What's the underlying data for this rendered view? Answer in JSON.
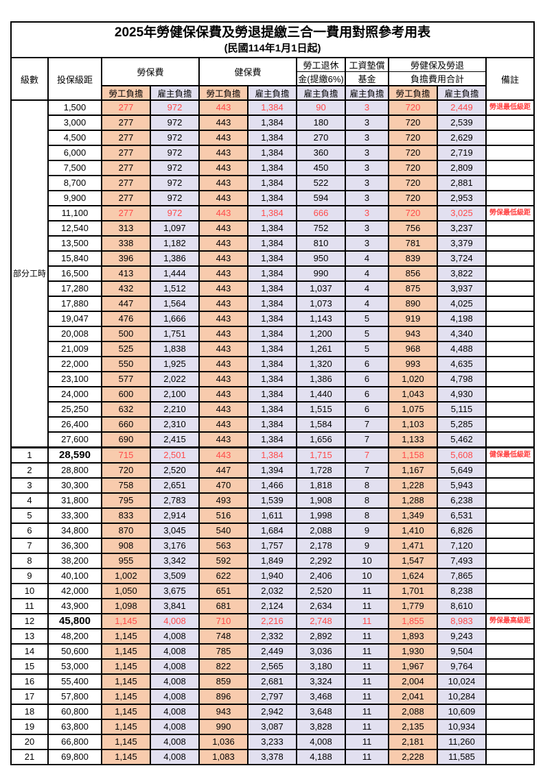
{
  "title": "2025年勞健保保費及勞退提繳三合一費用對照參考用表",
  "subtitle": "(民國114年1月1日起)",
  "colors": {
    "employee_cell": "#F8CBAD",
    "employer_cell": "#E2E0F0",
    "highlight_text": "#FF4A4A",
    "remark_text": "#FF3E3E",
    "border": "#000000"
  },
  "header": {
    "level": "級數",
    "bracket": "投保級距",
    "labor_ins": "勞保費",
    "health_ins": "健保費",
    "pension_line1": "勞工退休",
    "pension_line2": "金(提繳6%)",
    "wage_fund_line1": "工資墊償",
    "wage_fund_line2": "基金",
    "total_line1": "勞健保及勞退",
    "total_line2": "負擔費用合計",
    "remark": "備註",
    "employee": "勞工負擔",
    "employer": "雇主負擔"
  },
  "part_time": {
    "label": "部分工時",
    "rowspan": 23
  },
  "rows": [
    {
      "level": null,
      "bracket": "1,500",
      "values": [
        "277",
        "972",
        "443",
        "1,384",
        "90",
        "3",
        "720",
        "2,449"
      ],
      "remark": "勞退最低級距",
      "red": true,
      "big_bracket": false,
      "section_start": false
    },
    {
      "level": null,
      "bracket": "3,000",
      "values": [
        "277",
        "972",
        "443",
        "1,384",
        "180",
        "3",
        "720",
        "2,539"
      ],
      "remark": "",
      "red": false,
      "big_bracket": false,
      "section_start": false
    },
    {
      "level": null,
      "bracket": "4,500",
      "values": [
        "277",
        "972",
        "443",
        "1,384",
        "270",
        "3",
        "720",
        "2,629"
      ],
      "remark": "",
      "red": false,
      "big_bracket": false,
      "section_start": false
    },
    {
      "level": null,
      "bracket": "6,000",
      "values": [
        "277",
        "972",
        "443",
        "1,384",
        "360",
        "3",
        "720",
        "2,719"
      ],
      "remark": "",
      "red": false,
      "big_bracket": false,
      "section_start": false
    },
    {
      "level": null,
      "bracket": "7,500",
      "values": [
        "277",
        "972",
        "443",
        "1,384",
        "450",
        "3",
        "720",
        "2,809"
      ],
      "remark": "",
      "red": false,
      "big_bracket": false,
      "section_start": false
    },
    {
      "level": null,
      "bracket": "8,700",
      "values": [
        "277",
        "972",
        "443",
        "1,384",
        "522",
        "3",
        "720",
        "2,881"
      ],
      "remark": "",
      "red": false,
      "big_bracket": false,
      "section_start": false
    },
    {
      "level": null,
      "bracket": "9,900",
      "values": [
        "277",
        "972",
        "443",
        "1,384",
        "594",
        "3",
        "720",
        "2,953"
      ],
      "remark": "",
      "red": false,
      "big_bracket": false,
      "section_start": false
    },
    {
      "level": null,
      "bracket": "11,100",
      "values": [
        "277",
        "972",
        "443",
        "1,384",
        "666",
        "3",
        "720",
        "3,025"
      ],
      "remark": "勞保最低級距",
      "red": true,
      "big_bracket": false,
      "section_start": false
    },
    {
      "level": null,
      "bracket": "12,540",
      "values": [
        "313",
        "1,097",
        "443",
        "1,384",
        "752",
        "3",
        "756",
        "3,237"
      ],
      "remark": "",
      "red": false,
      "big_bracket": false,
      "section_start": false
    },
    {
      "level": null,
      "bracket": "13,500",
      "values": [
        "338",
        "1,182",
        "443",
        "1,384",
        "810",
        "3",
        "781",
        "3,379"
      ],
      "remark": "",
      "red": false,
      "big_bracket": false,
      "section_start": false
    },
    {
      "level": null,
      "bracket": "15,840",
      "values": [
        "396",
        "1,386",
        "443",
        "1,384",
        "950",
        "4",
        "839",
        "3,724"
      ],
      "remark": "",
      "red": false,
      "big_bracket": false,
      "section_start": false
    },
    {
      "level": null,
      "bracket": "16,500",
      "values": [
        "413",
        "1,444",
        "443",
        "1,384",
        "990",
        "4",
        "856",
        "3,822"
      ],
      "remark": "",
      "red": false,
      "big_bracket": false,
      "section_start": false
    },
    {
      "level": null,
      "bracket": "17,280",
      "values": [
        "432",
        "1,512",
        "443",
        "1,384",
        "1,037",
        "4",
        "875",
        "3,937"
      ],
      "remark": "",
      "red": false,
      "big_bracket": false,
      "section_start": false
    },
    {
      "level": null,
      "bracket": "17,880",
      "values": [
        "447",
        "1,564",
        "443",
        "1,384",
        "1,073",
        "4",
        "890",
        "4,025"
      ],
      "remark": "",
      "red": false,
      "big_bracket": false,
      "section_start": false
    },
    {
      "level": null,
      "bracket": "19,047",
      "values": [
        "476",
        "1,666",
        "443",
        "1,384",
        "1,143",
        "5",
        "919",
        "4,198"
      ],
      "remark": "",
      "red": false,
      "big_bracket": false,
      "section_start": false
    },
    {
      "level": null,
      "bracket": "20,008",
      "values": [
        "500",
        "1,751",
        "443",
        "1,384",
        "1,200",
        "5",
        "943",
        "4,340"
      ],
      "remark": "",
      "red": false,
      "big_bracket": false,
      "section_start": false
    },
    {
      "level": null,
      "bracket": "21,009",
      "values": [
        "525",
        "1,838",
        "443",
        "1,384",
        "1,261",
        "5",
        "968",
        "4,488"
      ],
      "remark": "",
      "red": false,
      "big_bracket": false,
      "section_start": false
    },
    {
      "level": null,
      "bracket": "22,000",
      "values": [
        "550",
        "1,925",
        "443",
        "1,384",
        "1,320",
        "6",
        "993",
        "4,635"
      ],
      "remark": "",
      "red": false,
      "big_bracket": false,
      "section_start": false
    },
    {
      "level": null,
      "bracket": "23,100",
      "values": [
        "577",
        "2,022",
        "443",
        "1,384",
        "1,386",
        "6",
        "1,020",
        "4,798"
      ],
      "remark": "",
      "red": false,
      "big_bracket": false,
      "section_start": false
    },
    {
      "level": null,
      "bracket": "24,000",
      "values": [
        "600",
        "2,100",
        "443",
        "1,384",
        "1,440",
        "6",
        "1,043",
        "4,930"
      ],
      "remark": "",
      "red": false,
      "big_bracket": false,
      "section_start": false
    },
    {
      "level": null,
      "bracket": "25,250",
      "values": [
        "632",
        "2,210",
        "443",
        "1,384",
        "1,515",
        "6",
        "1,075",
        "5,115"
      ],
      "remark": "",
      "red": false,
      "big_bracket": false,
      "section_start": false
    },
    {
      "level": null,
      "bracket": "26,400",
      "values": [
        "660",
        "2,310",
        "443",
        "1,384",
        "1,584",
        "7",
        "1,103",
        "5,285"
      ],
      "remark": "",
      "red": false,
      "big_bracket": false,
      "section_start": false
    },
    {
      "level": null,
      "bracket": "27,600",
      "values": [
        "690",
        "2,415",
        "443",
        "1,384",
        "1,656",
        "7",
        "1,133",
        "5,462"
      ],
      "remark": "",
      "red": false,
      "big_bracket": false,
      "section_start": false
    },
    {
      "level": "1",
      "bracket": "28,590",
      "values": [
        "715",
        "2,501",
        "443",
        "1,384",
        "1,715",
        "7",
        "1,158",
        "5,608"
      ],
      "remark": "健保最低級距",
      "red": true,
      "big_bracket": true,
      "section_start": true
    },
    {
      "level": "2",
      "bracket": "28,800",
      "values": [
        "720",
        "2,520",
        "447",
        "1,394",
        "1,728",
        "7",
        "1,167",
        "5,649"
      ],
      "remark": "",
      "red": false,
      "big_bracket": false,
      "section_start": false
    },
    {
      "level": "3",
      "bracket": "30,300",
      "values": [
        "758",
        "2,651",
        "470",
        "1,466",
        "1,818",
        "8",
        "1,228",
        "5,943"
      ],
      "remark": "",
      "red": false,
      "big_bracket": false,
      "section_start": false
    },
    {
      "level": "4",
      "bracket": "31,800",
      "values": [
        "795",
        "2,783",
        "493",
        "1,539",
        "1,908",
        "8",
        "1,288",
        "6,238"
      ],
      "remark": "",
      "red": false,
      "big_bracket": false,
      "section_start": false
    },
    {
      "level": "5",
      "bracket": "33,300",
      "values": [
        "833",
        "2,914",
        "516",
        "1,611",
        "1,998",
        "8",
        "1,349",
        "6,531"
      ],
      "remark": "",
      "red": false,
      "big_bracket": false,
      "section_start": false
    },
    {
      "level": "6",
      "bracket": "34,800",
      "values": [
        "870",
        "3,045",
        "540",
        "1,684",
        "2,088",
        "9",
        "1,410",
        "6,826"
      ],
      "remark": "",
      "red": false,
      "big_bracket": false,
      "section_start": false
    },
    {
      "level": "7",
      "bracket": "36,300",
      "values": [
        "908",
        "3,176",
        "563",
        "1,757",
        "2,178",
        "9",
        "1,471",
        "7,120"
      ],
      "remark": "",
      "red": false,
      "big_bracket": false,
      "section_start": false
    },
    {
      "level": "8",
      "bracket": "38,200",
      "values": [
        "955",
        "3,342",
        "592",
        "1,849",
        "2,292",
        "10",
        "1,547",
        "7,493"
      ],
      "remark": "",
      "red": false,
      "big_bracket": false,
      "section_start": false
    },
    {
      "level": "9",
      "bracket": "40,100",
      "values": [
        "1,002",
        "3,509",
        "622",
        "1,940",
        "2,406",
        "10",
        "1,624",
        "7,865"
      ],
      "remark": "",
      "red": false,
      "big_bracket": false,
      "section_start": false
    },
    {
      "level": "10",
      "bracket": "42,000",
      "values": [
        "1,050",
        "3,675",
        "651",
        "2,032",
        "2,520",
        "11",
        "1,701",
        "8,238"
      ],
      "remark": "",
      "red": false,
      "big_bracket": false,
      "section_start": false
    },
    {
      "level": "11",
      "bracket": "43,900",
      "values": [
        "1,098",
        "3,841",
        "681",
        "2,124",
        "2,634",
        "11",
        "1,779",
        "8,610"
      ],
      "remark": "",
      "red": false,
      "big_bracket": false,
      "section_start": false
    },
    {
      "level": "12",
      "bracket": "45,800",
      "values": [
        "1,145",
        "4,008",
        "710",
        "2,216",
        "2,748",
        "11",
        "1,855",
        "8,983"
      ],
      "remark": "勞保最高級距",
      "red": true,
      "big_bracket": true,
      "section_start": false
    },
    {
      "level": "13",
      "bracket": "48,200",
      "values": [
        "1,145",
        "4,008",
        "748",
        "2,332",
        "2,892",
        "11",
        "1,893",
        "9,243"
      ],
      "remark": "",
      "red": false,
      "big_bracket": false,
      "section_start": false
    },
    {
      "level": "14",
      "bracket": "50,600",
      "values": [
        "1,145",
        "4,008",
        "785",
        "2,449",
        "3,036",
        "11",
        "1,930",
        "9,504"
      ],
      "remark": "",
      "red": false,
      "big_bracket": false,
      "section_start": false
    },
    {
      "level": "15",
      "bracket": "53,000",
      "values": [
        "1,145",
        "4,008",
        "822",
        "2,565",
        "3,180",
        "11",
        "1,967",
        "9,764"
      ],
      "remark": "",
      "red": false,
      "big_bracket": false,
      "section_start": false
    },
    {
      "level": "16",
      "bracket": "55,400",
      "values": [
        "1,145",
        "4,008",
        "859",
        "2,681",
        "3,324",
        "11",
        "2,004",
        "10,024"
      ],
      "remark": "",
      "red": false,
      "big_bracket": false,
      "section_start": false
    },
    {
      "level": "17",
      "bracket": "57,800",
      "values": [
        "1,145",
        "4,008",
        "896",
        "2,797",
        "3,468",
        "11",
        "2,041",
        "10,284"
      ],
      "remark": "",
      "red": false,
      "big_bracket": false,
      "section_start": false
    },
    {
      "level": "18",
      "bracket": "60,800",
      "values": [
        "1,145",
        "4,008",
        "943",
        "2,942",
        "3,648",
        "11",
        "2,088",
        "10,609"
      ],
      "remark": "",
      "red": false,
      "big_bracket": false,
      "section_start": false
    },
    {
      "level": "19",
      "bracket": "63,800",
      "values": [
        "1,145",
        "4,008",
        "990",
        "3,087",
        "3,828",
        "11",
        "2,135",
        "10,934"
      ],
      "remark": "",
      "red": false,
      "big_bracket": false,
      "section_start": false
    },
    {
      "level": "20",
      "bracket": "66,800",
      "values": [
        "1,145",
        "4,008",
        "1,036",
        "3,233",
        "4,008",
        "11",
        "2,181",
        "11,260"
      ],
      "remark": "",
      "red": false,
      "big_bracket": false,
      "section_start": false
    },
    {
      "level": "21",
      "bracket": "69,800",
      "values": [
        "1,145",
        "4,008",
        "1,083",
        "3,378",
        "4,188",
        "11",
        "2,228",
        "11,585"
      ],
      "remark": "",
      "red": false,
      "big_bracket": false,
      "section_start": false
    }
  ]
}
